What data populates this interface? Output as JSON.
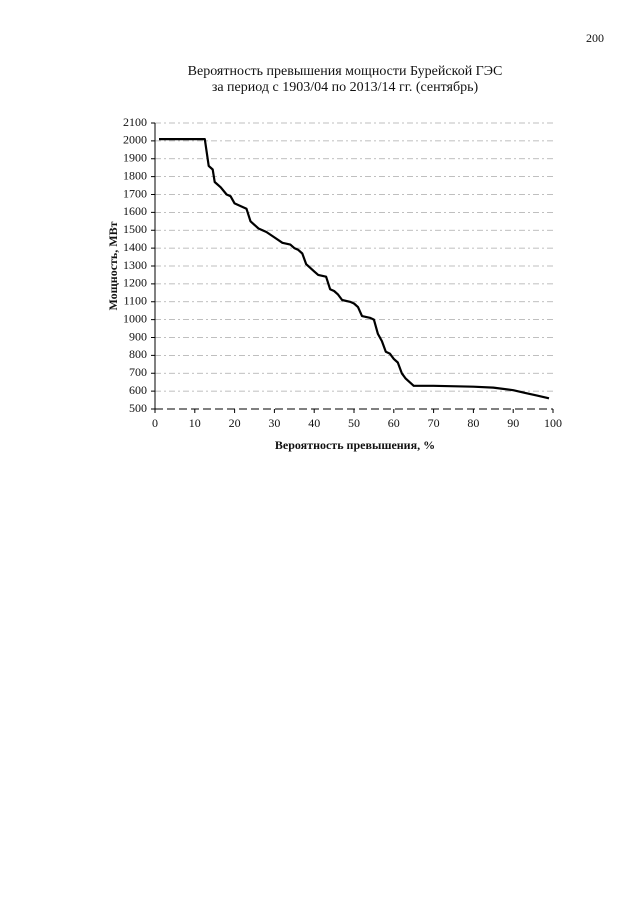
{
  "page_number": "200",
  "chart_data": {
    "type": "line",
    "title": "Вероятность превышения мощности Бурейской ГЭС",
    "subtitle": "за период с 1903/04 по 2013/14 гг. (сентябрь)",
    "x_label": "Вероятность превышения, %",
    "y_label": "Мощность, МВт",
    "x": [
      1,
      12.5,
      13.5,
      14.5,
      15,
      16.5,
      18,
      19,
      20,
      22,
      23,
      24,
      26,
      28,
      30,
      32,
      34,
      35,
      36,
      37,
      38,
      40,
      41,
      43,
      44,
      45,
      46,
      47,
      49,
      50,
      51,
      52,
      54,
      55,
      56,
      57,
      58,
      59,
      60,
      61,
      62,
      63,
      64,
      65,
      70,
      80,
      85,
      90,
      93,
      96,
      99
    ],
    "values": [
      2010,
      2010,
      1860,
      1840,
      1770,
      1740,
      1700,
      1690,
      1650,
      1630,
      1620,
      1550,
      1510,
      1490,
      1460,
      1430,
      1420,
      1400,
      1390,
      1370,
      1310,
      1270,
      1250,
      1240,
      1170,
      1160,
      1140,
      1110,
      1100,
      1090,
      1070,
      1020,
      1010,
      1000,
      920,
      880,
      820,
      810,
      780,
      760,
      700,
      670,
      650,
      630,
      630,
      625,
      620,
      605,
      590,
      575,
      560
    ],
    "color": "#000000",
    "xlim": [
      0,
      100
    ],
    "xticks": [
      0,
      10,
      20,
      30,
      40,
      50,
      60,
      70,
      80,
      90,
      100
    ],
    "ylim": [
      500,
      2100
    ],
    "yticks": [
      500,
      600,
      700,
      800,
      900,
      1000,
      1100,
      1200,
      1300,
      1400,
      1500,
      1600,
      1700,
      1800,
      1900,
      2000,
      2100
    ],
    "grid": true
  }
}
